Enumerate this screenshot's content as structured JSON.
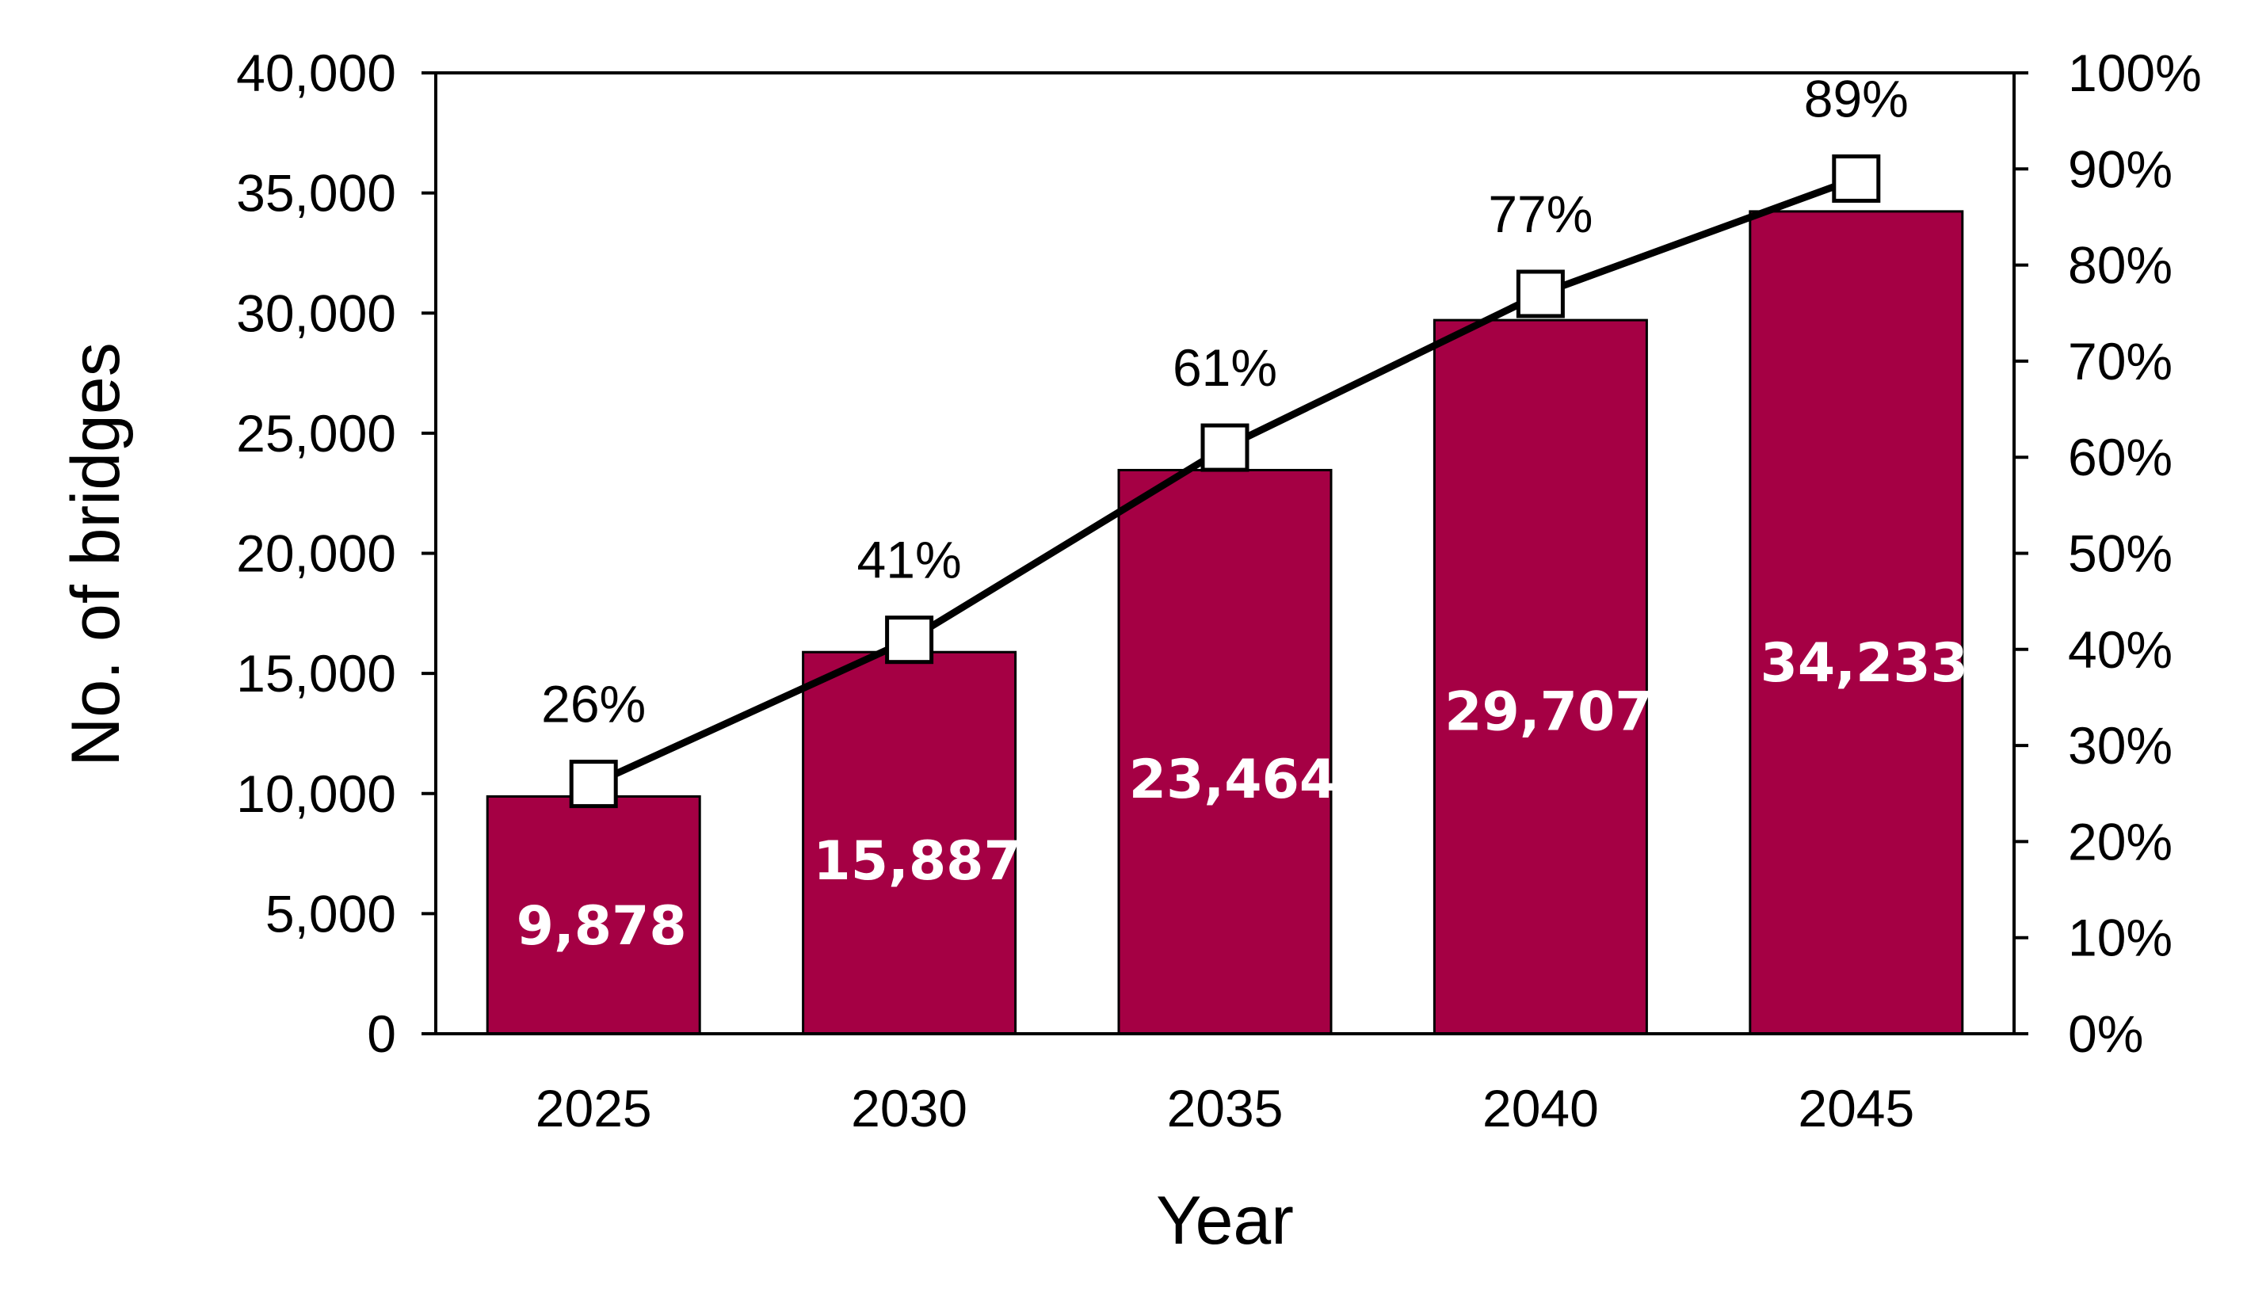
{
  "chart_data": {
    "type": "bar",
    "categories": [
      "2025",
      "2030",
      "2035",
      "2040",
      "2045"
    ],
    "xlabel": "Year",
    "ylabel": "No. of bridges",
    "ylim": [
      0,
      40000
    ],
    "y_ticks": [
      "0",
      "5,000",
      "10,000",
      "15,000",
      "20,000",
      "25,000",
      "30,000",
      "35,000",
      "40,000"
    ],
    "y2lim": [
      0,
      100
    ],
    "y2_ticks": [
      "0%",
      "10%",
      "20%",
      "30%",
      "40%",
      "50%",
      "60%",
      "70%",
      "80%",
      "90%",
      "100%"
    ],
    "series": [
      {
        "type": "bar",
        "axis": "left",
        "values": [
          9878,
          15887,
          23464,
          29707,
          34233
        ],
        "labels": [
          "9,878",
          "15,887",
          "23,464",
          "29,707",
          "34,233"
        ],
        "color": "#A50044"
      },
      {
        "type": "line",
        "axis": "right",
        "values": [
          26,
          41,
          61,
          77,
          89
        ],
        "labels": [
          "26%",
          "41%",
          "61%",
          "77%",
          "89%"
        ],
        "marker": "hollow-square",
        "color": "#000000"
      }
    ],
    "grid": false,
    "legend": "none"
  }
}
